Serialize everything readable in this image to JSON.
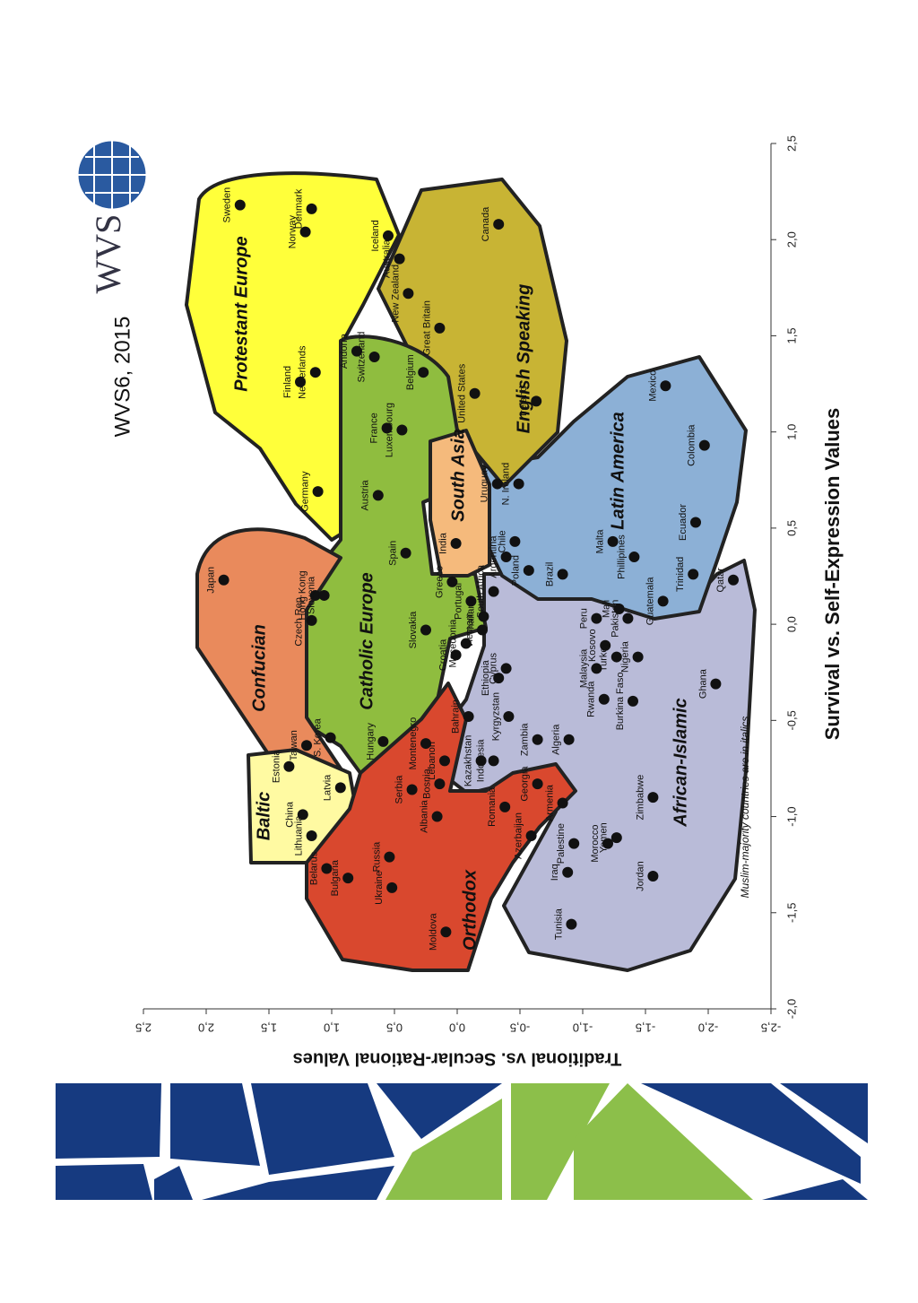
{
  "chart_data": {
    "type": "scatter",
    "stamp": "WVS6, 2015",
    "logo": "WVS",
    "x_label": "Survival vs. Self-Expression Values",
    "y_label": "Traditional vs. Secular-Rational Values",
    "note": "Muslim-majority countries are in italics",
    "regions": [
      "Protestant Europe",
      "English Speaking",
      "Catholic Europe",
      "Confucian",
      "Baltic",
      "Orthodox",
      "South Asia",
      "Latin America",
      "African-Islamic"
    ],
    "xlim": [
      -2.0,
      2.5
    ],
    "ylim": [
      -2.5,
      2.5
    ],
    "xticks": [
      {
        "value": -2.0,
        "label": "-2,0"
      },
      {
        "value": -1.5,
        "label": "-1,5"
      },
      {
        "value": -1.0,
        "label": "-1,0"
      },
      {
        "value": -0.5,
        "label": "-0,5"
      },
      {
        "value": 0.0,
        "label": "0,0"
      },
      {
        "value": 0.5,
        "label": "0,5"
      },
      {
        "value": 1.0,
        "label": "1,0"
      },
      {
        "value": 1.5,
        "label": "1,5"
      },
      {
        "value": 2.0,
        "label": "2,0"
      },
      {
        "value": 2.5,
        "label": "2,5"
      }
    ],
    "yticks": [
      {
        "value": -2.5,
        "label": "-2,5"
      },
      {
        "value": -2.0,
        "label": "-2,0"
      },
      {
        "value": -1.5,
        "label": "-1,5"
      },
      {
        "value": -1.0,
        "label": "-1,0"
      },
      {
        "value": -0.5,
        "label": "-0,5"
      },
      {
        "value": 0.0,
        "label": "0,0"
      },
      {
        "value": 0.5,
        "label": "0,5"
      },
      {
        "value": 1.0,
        "label": "1,0"
      },
      {
        "value": 1.5,
        "label": "1,5"
      },
      {
        "value": 2.0,
        "label": "2,0"
      },
      {
        "value": 2.5,
        "label": "2,5"
      }
    ],
    "color": "#111111",
    "points": [
      {
        "label": "Sweden",
        "x": 2.18,
        "y": 1.73
      },
      {
        "label": "Denmark",
        "x": 2.16,
        "y": 1.16
      },
      {
        "label": "Norway",
        "x": 2.04,
        "y": 1.21
      },
      {
        "label": "Finland",
        "x": 1.26,
        "y": 1.25
      },
      {
        "label": "Netherlands",
        "x": 1.31,
        "y": 1.13
      },
      {
        "label": "Iceland",
        "x": 2.02,
        "y": 0.55
      },
      {
        "label": "Australia",
        "x": 1.9,
        "y": 0.46
      },
      {
        "label": "New Zealand",
        "x": 1.72,
        "y": 0.39
      },
      {
        "label": "Switzerland",
        "x": 1.39,
        "y": 0.66
      },
      {
        "label": "Andorra",
        "x": 1.42,
        "y": 0.8
      },
      {
        "label": "Great Britain",
        "x": 1.54,
        "y": 0.14
      },
      {
        "label": "Canada",
        "x": 2.08,
        "y": -0.33
      },
      {
        "label": "United States",
        "x": 1.2,
        "y": -0.14
      },
      {
        "label": "Ireland",
        "x": 1.16,
        "y": -0.63
      },
      {
        "label": "Luxembourg",
        "x": 1.01,
        "y": 0.44
      },
      {
        "label": "France",
        "x": 1.02,
        "y": 0.56
      },
      {
        "label": "Belgium",
        "x": 1.31,
        "y": 0.27
      },
      {
        "label": "Germany",
        "x": 0.69,
        "y": 1.11
      },
      {
        "label": "Austria",
        "x": 0.67,
        "y": 0.63
      },
      {
        "label": "Spain",
        "x": 0.37,
        "y": 0.41
      },
      {
        "label": "N. Ireland",
        "x": 0.73,
        "y": -0.49
      },
      {
        "label": "Uruguay",
        "x": 0.73,
        "y": -0.32
      },
      {
        "label": "India",
        "x": 0.42,
        "y": 0.01
      },
      {
        "label": "Chile",
        "x": 0.43,
        "y": -0.46
      },
      {
        "label": "Argentina",
        "x": 0.35,
        "y": -0.39
      },
      {
        "label": "Poland",
        "x": 0.28,
        "y": -0.57
      },
      {
        "label": "Mexico",
        "x": 1.24,
        "y": -1.66
      },
      {
        "label": "Colombia",
        "x": 0.93,
        "y": -1.97
      },
      {
        "label": "Ecuador",
        "x": 0.53,
        "y": -1.9
      },
      {
        "label": "Malta",
        "x": 0.43,
        "y": -1.24
      },
      {
        "label": "Phillipines",
        "x": 0.35,
        "y": -1.41
      },
      {
        "label": "Brazil",
        "x": 0.26,
        "y": -0.84
      },
      {
        "label": "Guatemala",
        "x": 0.12,
        "y": -1.64
      },
      {
        "label": "Trinidad",
        "x": 0.26,
        "y": -1.88
      },
      {
        "label": "Qatar",
        "x": 0.23,
        "y": -2.2
      },
      {
        "label": "Japan",
        "x": 0.23,
        "y": 1.86
      },
      {
        "label": "Hong Kong",
        "x": 0.15,
        "y": 1.13
      },
      {
        "label": "Slovenia",
        "x": 0.15,
        "y": 1.06
      },
      {
        "label": "Czech Rep.",
        "x": 0.02,
        "y": 1.16
      },
      {
        "label": "Slovakia",
        "x": -0.03,
        "y": 0.25
      },
      {
        "label": "Greece",
        "x": 0.22,
        "y": 0.04
      },
      {
        "label": "Portugal",
        "x": 0.12,
        "y": -0.11
      },
      {
        "label": "South Africa",
        "x": 0.17,
        "y": -0.29
      },
      {
        "label": "Peru",
        "x": 0.03,
        "y": -1.11
      },
      {
        "label": "Croatia",
        "x": -0.16,
        "y": 0.01
      },
      {
        "label": "Macedonia",
        "x": -0.1,
        "y": -0.07
      },
      {
        "label": "Vietnam",
        "x": -0.03,
        "y": -0.2
      },
      {
        "label": "Thailand",
        "x": 0.04,
        "y": -0.21
      },
      {
        "label": "Cyprus",
        "x": -0.23,
        "y": -0.39
      },
      {
        "label": "Taiwan",
        "x": -0.63,
        "y": 1.2
      },
      {
        "label": "S. Korea",
        "x": -0.59,
        "y": 1.01
      },
      {
        "label": "Hungary",
        "x": -0.61,
        "y": 0.59
      },
      {
        "label": "Estonia",
        "x": -0.74,
        "y": 1.34
      },
      {
        "label": "China",
        "x": -0.99,
        "y": 1.23
      },
      {
        "label": "Lithuania",
        "x": -1.1,
        "y": 1.16
      },
      {
        "label": "Latvia",
        "x": -0.85,
        "y": 0.93
      },
      {
        "label": "Montenegro",
        "x": -0.62,
        "y": 0.25
      },
      {
        "label": "Russia",
        "x": -1.21,
        "y": 0.54
      },
      {
        "label": "Serbia",
        "x": -0.86,
        "y": 0.36
      },
      {
        "label": "Bosnia",
        "x": -0.83,
        "y": 0.14
      },
      {
        "label": "Albania",
        "x": -1.0,
        "y": 0.16
      },
      {
        "label": "Belarus",
        "x": -1.27,
        "y": 1.04
      },
      {
        "label": "Bulgaria",
        "x": -1.32,
        "y": 0.87
      },
      {
        "label": "Ukraine",
        "x": -1.37,
        "y": 0.52
      },
      {
        "label": "Moldova",
        "x": -1.6,
        "y": 0.09
      },
      {
        "label": "Romania",
        "x": -0.95,
        "y": -0.38
      },
      {
        "label": "Georgia",
        "x": -0.83,
        "y": -0.64
      },
      {
        "label": "Armenia",
        "x": -0.93,
        "y": -0.84
      },
      {
        "label": "Azerbaijan",
        "x": -1.1,
        "y": -0.59
      },
      {
        "label": "Lebanon",
        "x": -0.71,
        "y": 0.1
      },
      {
        "label": "Bahrain",
        "x": -0.48,
        "y": -0.09
      },
      {
        "label": "Kazakhstan",
        "x": -0.71,
        "y": -0.19
      },
      {
        "label": "Indonesia",
        "x": -0.71,
        "y": -0.29
      },
      {
        "label": "Kyrgyzstan",
        "x": -0.48,
        "y": -0.41
      },
      {
        "label": "Ethiopia",
        "x": -0.28,
        "y": -0.33
      },
      {
        "label": "Zambia",
        "x": -0.6,
        "y": -0.64
      },
      {
        "label": "Algeria",
        "x": -0.6,
        "y": -0.89
      },
      {
        "label": "Malaysia",
        "x": -0.23,
        "y": -1.11
      },
      {
        "label": "Kosovo",
        "x": -0.11,
        "y": -1.18
      },
      {
        "label": "Turkey",
        "x": -0.17,
        "y": -1.27
      },
      {
        "label": "Pakistan",
        "x": 0.03,
        "y": -1.36
      },
      {
        "label": "Mali",
        "x": 0.08,
        "y": -1.29
      },
      {
        "label": "Rwanda",
        "x": -0.39,
        "y": -1.17
      },
      {
        "label": "Burkina Faso",
        "x": -0.4,
        "y": -1.4
      },
      {
        "label": "Nigeria",
        "x": -0.17,
        "y": -1.44
      },
      {
        "label": "Zimbabwe",
        "x": -0.9,
        "y": -1.56
      },
      {
        "label": "Ghana",
        "x": -0.31,
        "y": -2.06
      },
      {
        "label": "Palestine",
        "x": -1.14,
        "y": -0.93
      },
      {
        "label": "Iraq",
        "x": -1.29,
        "y": -0.88
      },
      {
        "label": "Yemen",
        "x": -1.11,
        "y": -1.27
      },
      {
        "label": "Morocco",
        "x": -1.14,
        "y": -1.2
      },
      {
        "label": "Jordan",
        "x": -1.31,
        "y": -1.56
      },
      {
        "label": "Tunisia",
        "x": -1.56,
        "y": -0.91
      }
    ]
  }
}
